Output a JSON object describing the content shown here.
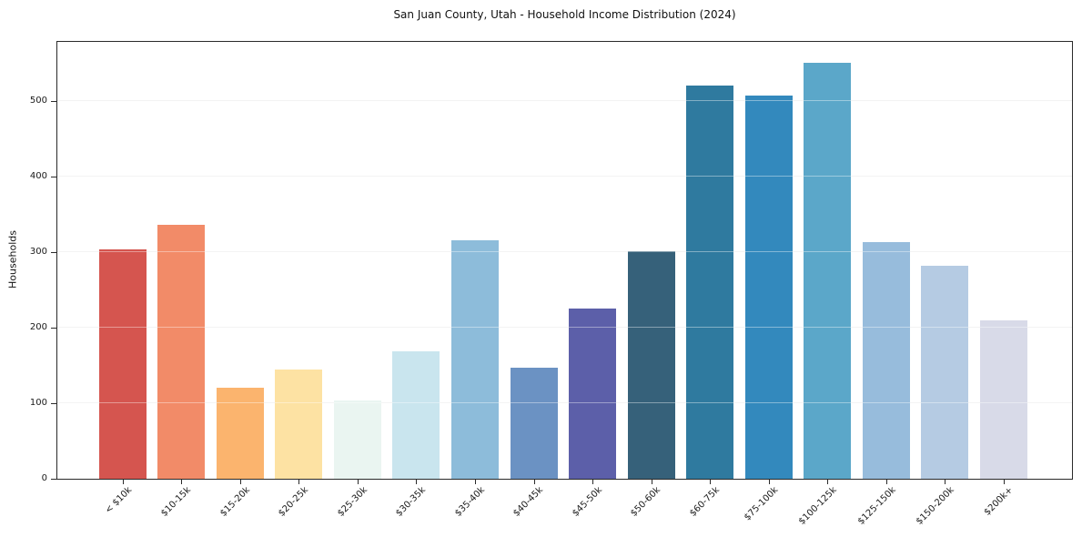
{
  "chart_data": {
    "type": "bar",
    "title": "San Juan County, Utah - Household Income Distribution (2024)",
    "xlabel": "",
    "ylabel": "Households",
    "categories": [
      "< $10k",
      "$10-15k",
      "$15-20k",
      "$20-25k",
      "$25-30k",
      "$30-35k",
      "$35-40k",
      "$40-45k",
      "$45-50k",
      "$50-60k",
      "$60-75k",
      "$75-100k",
      "$100-125k",
      "$125-150k",
      "$150-200k",
      "$200k+"
    ],
    "values": [
      303,
      336,
      121,
      144,
      103,
      169,
      316,
      147,
      225,
      301,
      520,
      507,
      550,
      313,
      282,
      210
    ],
    "bar_colors": [
      "#d5554f",
      "#f28b68",
      "#fbb46e",
      "#fde2a3",
      "#eaf5f1",
      "#c9e5ee",
      "#8dbcda",
      "#6b92c3",
      "#5c5fa9",
      "#36617a",
      "#2f7a9f",
      "#3389bd",
      "#5ba7c9",
      "#97bcdc",
      "#b5cbe3",
      "#d8dae8"
    ],
    "yticks": [
      0,
      100,
      200,
      300,
      400,
      500
    ],
    "ylim": [
      0,
      578
    ],
    "grid": "horizontal",
    "legend": "none"
  },
  "colors": {
    "background": "#ffffff",
    "grid": "#ebebeb",
    "spine": "#2a2a2a",
    "text": "#1a1a1a"
  }
}
